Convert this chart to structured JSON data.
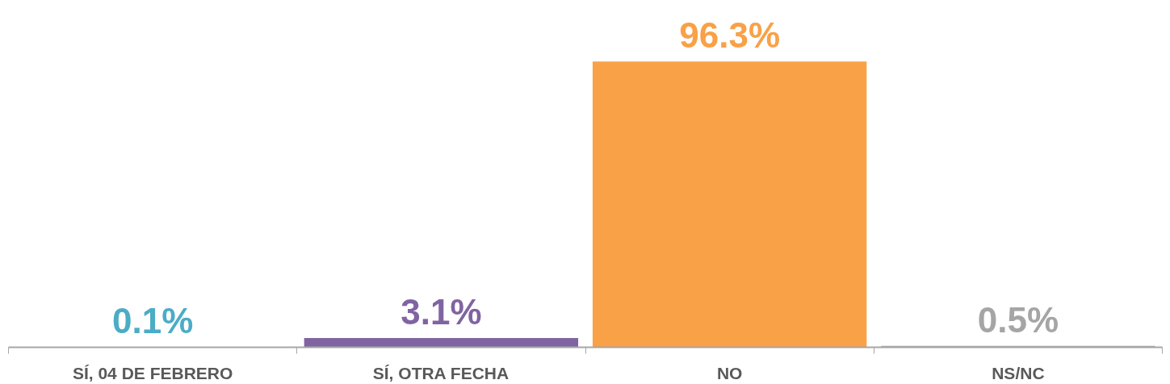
{
  "chart_data": {
    "type": "bar",
    "categories": [
      "SÍ, 04 DE FEBRERO",
      "SÍ, OTRA FECHA",
      "NO",
      "NS/NC"
    ],
    "values": [
      0.1,
      3.1,
      96.3,
      0.5
    ],
    "colors": [
      "#4bacc6",
      "#8064a2",
      "#f9a147",
      "#a5a5a5"
    ],
    "value_labels": [
      "0.1%",
      "3.1%",
      "96.3%",
      "0.5%"
    ],
    "grid": false
  }
}
